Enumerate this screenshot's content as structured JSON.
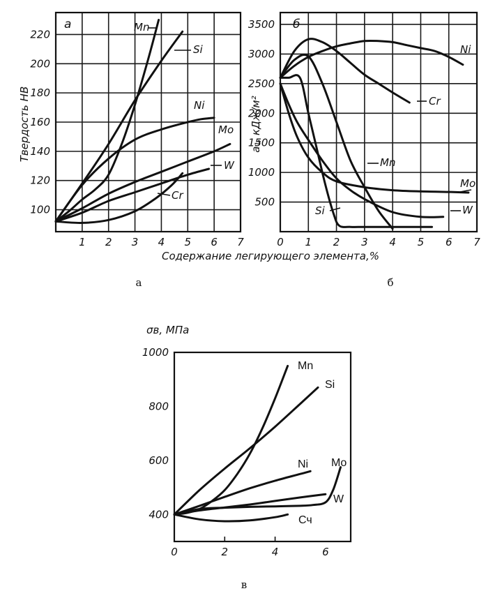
{
  "chart_data": [
    {
      "id": "a",
      "type": "line",
      "panel_label": "а",
      "caption": "а",
      "ylabel": "Твердость НВ",
      "xlabel": "Содержание легирующего элемента,%",
      "xlim": [
        0,
        7
      ],
      "ylim": [
        85,
        235
      ],
      "xticks": [
        "1",
        "2",
        "3",
        "4",
        "5",
        "6",
        "7"
      ],
      "yticks": [
        "100",
        "120",
        "140",
        "160",
        "180",
        "200",
        "220"
      ],
      "ytick_values": [
        100,
        120,
        140,
        160,
        180,
        200,
        220
      ],
      "grid": true,
      "series": [
        {
          "name": "Mn",
          "x": [
            0,
            0.5,
            1,
            1.5,
            2,
            2.5,
            3,
            3.5,
            3.9
          ],
          "y": [
            92,
            99,
            107,
            114,
            124,
            145,
            172,
            203,
            230
          ]
        },
        {
          "name": "Si",
          "x": [
            0,
            1,
            2,
            3,
            4,
            4.8
          ],
          "y": [
            92,
            118,
            145,
            175,
            202,
            222
          ]
        },
        {
          "name": "Ni",
          "x": [
            0,
            1,
            2,
            3,
            4,
            5,
            5.5,
            6
          ],
          "y": [
            92,
            117,
            135,
            148,
            155,
            160,
            162,
            163
          ]
        },
        {
          "name": "Mo",
          "x": [
            0,
            1,
            2,
            3,
            4,
            5,
            6,
            6.6
          ],
          "y": [
            92,
            101,
            111,
            119,
            126,
            133,
            140,
            145
          ]
        },
        {
          "name": "W",
          "x": [
            0,
            1,
            2,
            3,
            4,
            5,
            5.8
          ],
          "y": [
            92,
            98,
            106,
            112,
            118,
            124,
            128
          ]
        },
        {
          "name": "Cr",
          "x": [
            0,
            1,
            2,
            3,
            3.8,
            4.4,
            4.8
          ],
          "y": [
            92,
            91,
            93,
            99,
            108,
            117,
            125
          ]
        }
      ]
    },
    {
      "id": "b",
      "type": "line",
      "panel_label": "б",
      "caption": "б",
      "ylabel": "а₁, кДж/м²",
      "xlabel": "",
      "xlim": [
        0,
        7
      ],
      "ylim": [
        0,
        3700
      ],
      "xticks": [
        "0",
        "1",
        "2",
        "3",
        "4",
        "5",
        "6",
        "7"
      ],
      "yticks": [
        "500",
        "1000",
        "1500",
        "2000",
        "2500",
        "3000",
        "3500"
      ],
      "ytick_values": [
        500,
        1000,
        1500,
        2000,
        2500,
        3000,
        3500
      ],
      "grid": true,
      "series": [
        {
          "name": "Ni",
          "x": [
            0,
            0.5,
            1,
            1.5,
            2,
            2.5,
            3,
            3.5,
            4,
            4.5,
            5,
            5.5,
            6,
            6.5
          ],
          "y": [
            2600,
            2800,
            2950,
            3050,
            3130,
            3180,
            3220,
            3220,
            3200,
            3150,
            3100,
            3050,
            2950,
            2820
          ]
        },
        {
          "name": "Cr",
          "x": [
            0,
            0.5,
            1,
            1.5,
            2,
            2.5,
            3,
            3.5,
            4,
            4.6
          ],
          "y": [
            2600,
            3050,
            3250,
            3200,
            3050,
            2850,
            2650,
            2500,
            2350,
            2180
          ]
        },
        {
          "name": "Mn",
          "x": [
            0,
            0.5,
            1,
            1.5,
            2,
            2.5,
            3,
            3.5,
            4
          ],
          "y": [
            2600,
            2900,
            2960,
            2500,
            1850,
            1200,
            750,
            350,
            50
          ]
        },
        {
          "name": "Si",
          "x": [
            0,
            0.3,
            0.7,
            1,
            1.3,
            1.6,
            1.9,
            2.1,
            2.5,
            3,
            4,
            5.4
          ],
          "y": [
            2600,
            2600,
            2600,
            2000,
            1400,
            800,
            300,
            100,
            80,
            80,
            80,
            80
          ]
        },
        {
          "name": "Mo",
          "x": [
            0,
            0.3,
            0.6,
            1,
            1.5,
            2,
            3,
            4,
            5,
            6,
            6.7
          ],
          "y": [
            2500,
            2000,
            1600,
            1250,
            1000,
            850,
            750,
            700,
            680,
            670,
            660
          ]
        },
        {
          "name": "W",
          "x": [
            0,
            0.3,
            0.6,
            1,
            1.5,
            2,
            2.5,
            3,
            4,
            5,
            5.8
          ],
          "y": [
            2500,
            2150,
            1850,
            1550,
            1200,
            900,
            700,
            550,
            330,
            250,
            250
          ]
        }
      ]
    },
    {
      "id": "v",
      "type": "line",
      "panel_label": "",
      "caption": "в",
      "ylabel": "σв, МПа",
      "xlabel": "",
      "xlim": [
        0,
        7
      ],
      "ylim": [
        300,
        1000
      ],
      "xticks": [
        "0",
        "2",
        "4",
        "6"
      ],
      "xtick_values": [
        0,
        2,
        4,
        6
      ],
      "yticks": [
        "1000",
        "800",
        "600",
        "400"
      ],
      "ytick_values": [
        1000,
        800,
        600,
        400
      ],
      "grid": false,
      "series": [
        {
          "name": "Mn",
          "x": [
            0,
            0.5,
            1,
            1.5,
            2,
            2.5,
            3,
            3.5,
            4,
            4.5
          ],
          "y": [
            400,
            406,
            420,
            450,
            490,
            550,
            625,
            720,
            830,
            950
          ]
        },
        {
          "name": "Si",
          "x": [
            0,
            1,
            2,
            3,
            4,
            5,
            5.7
          ],
          "y": [
            400,
            490,
            570,
            645,
            725,
            810,
            870
          ]
        },
        {
          "name": "Ni",
          "x": [
            0,
            1,
            2,
            3,
            4,
            5,
            5.4
          ],
          "y": [
            400,
            432,
            465,
            497,
            525,
            550,
            560
          ]
        },
        {
          "name": "Mo",
          "x": [
            0,
            1,
            2,
            3,
            4,
            5,
            5.5,
            6,
            6.3,
            6.6
          ],
          "y": [
            400,
            420,
            425,
            428,
            430,
            432,
            435,
            445,
            490,
            575
          ]
        },
        {
          "name": "W",
          "x": [
            0,
            1,
            2,
            3,
            4,
            5,
            6
          ],
          "y": [
            400,
            415,
            426,
            437,
            450,
            463,
            475
          ]
        },
        {
          "name": "Сч",
          "x": [
            0,
            1,
            2,
            3,
            4,
            4.5
          ],
          "y": [
            400,
            382,
            375,
            378,
            390,
            400
          ]
        }
      ]
    }
  ]
}
